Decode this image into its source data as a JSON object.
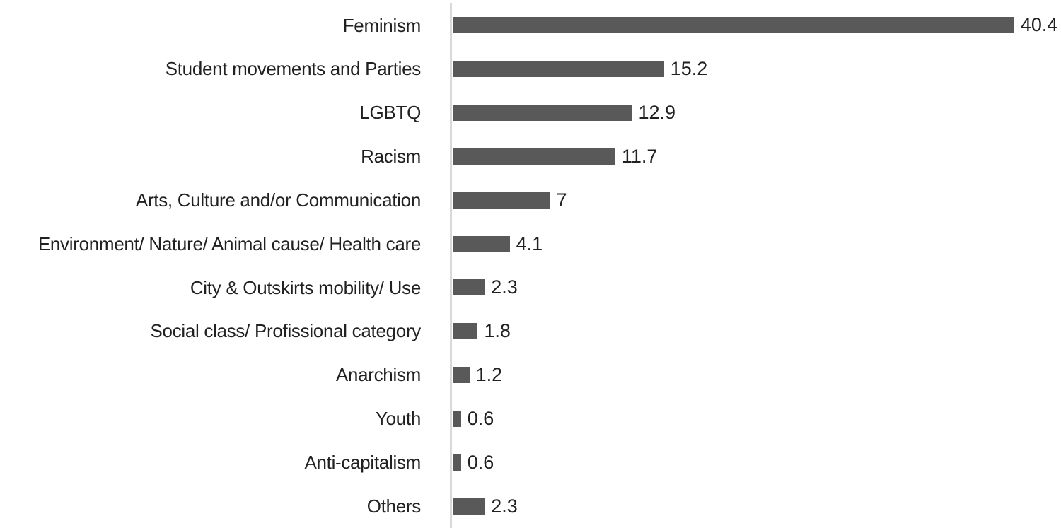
{
  "chart_data": {
    "type": "bar",
    "orientation": "horizontal",
    "title": "",
    "xlabel": "",
    "ylabel": "",
    "categories": [
      "Feminism",
      "Student movements and Parties",
      "LGBTQ",
      "Racism",
      "Arts, Culture and/or Communication",
      "Environment/ Nature/ Animal cause/ Health care",
      "City & Outskirts mobility/ Use",
      "Social class/ Profissional category",
      "Anarchism",
      "Youth",
      "Anti-capitalism",
      "Others"
    ],
    "values": [
      40.4,
      15.2,
      12.9,
      11.7,
      7,
      4.1,
      2.3,
      1.8,
      1.2,
      0.6,
      0.6,
      2.3
    ],
    "value_labels": [
      "40.4",
      "15.2",
      "12.9",
      "11.7",
      "7",
      "4.1",
      "2.3",
      "1.8",
      "1.2",
      "0.6",
      "0.6",
      "2.3"
    ],
    "xlim": [
      0,
      43
    ],
    "gridlines": false,
    "legend": "none",
    "data_labels": true,
    "colors": {
      "bar": "#595959",
      "axis_line": "#d9d9d9",
      "text": "#212121"
    }
  }
}
